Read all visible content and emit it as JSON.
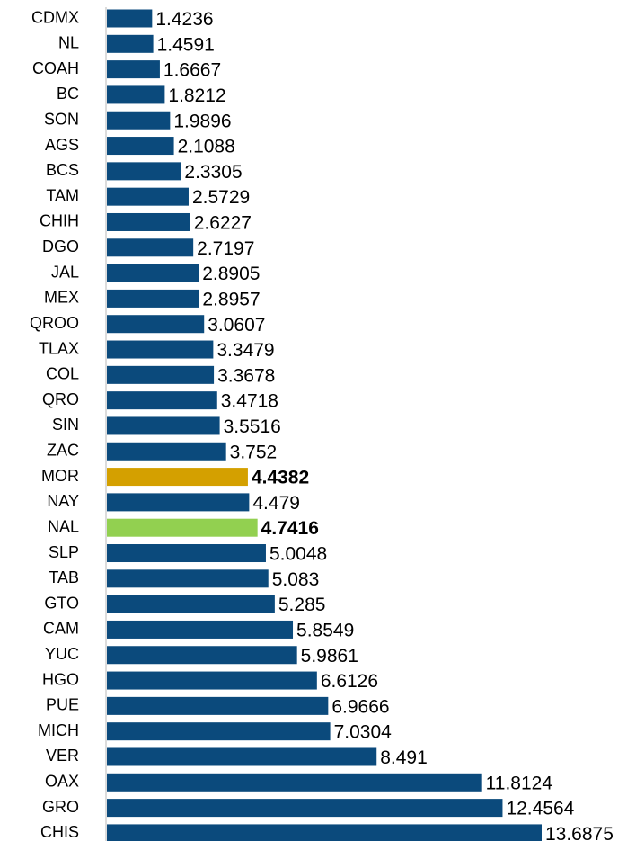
{
  "chart_data": {
    "type": "bar",
    "orientation": "horizontal",
    "categories": [
      "CDMX",
      "NL",
      "COAH",
      "BC",
      "SON",
      "AGS",
      "BCS",
      "TAM",
      "CHIH",
      "DGO",
      "JAL",
      "MEX",
      "QROO",
      "TLAX",
      "COL",
      "QRO",
      "SIN",
      "ZAC",
      "MOR",
      "NAY",
      "NAL",
      "SLP",
      "TAB",
      "GTO",
      "CAM",
      "YUC",
      "HGO",
      "PUE",
      "MICH",
      "VER",
      "OAX",
      "GRO",
      "CHIS"
    ],
    "values": [
      1.4236,
      1.4591,
      1.6667,
      1.8212,
      1.9896,
      2.1088,
      2.3305,
      2.5729,
      2.6227,
      2.7197,
      2.8905,
      2.8957,
      3.0607,
      3.3479,
      3.3678,
      3.4718,
      3.5516,
      3.752,
      4.4382,
      4.479,
      4.7416,
      5.0048,
      5.083,
      5.285,
      5.8549,
      5.9861,
      6.6126,
      6.9666,
      7.0304,
      8.491,
      11.8124,
      12.4564,
      13.6875
    ],
    "colors": [
      "#0b4a7c",
      "#0b4a7c",
      "#0b4a7c",
      "#0b4a7c",
      "#0b4a7c",
      "#0b4a7c",
      "#0b4a7c",
      "#0b4a7c",
      "#0b4a7c",
      "#0b4a7c",
      "#0b4a7c",
      "#0b4a7c",
      "#0b4a7c",
      "#0b4a7c",
      "#0b4a7c",
      "#0b4a7c",
      "#0b4a7c",
      "#0b4a7c",
      "#d4a000",
      "#0b4a7c",
      "#92d050",
      "#0b4a7c",
      "#0b4a7c",
      "#0b4a7c",
      "#0b4a7c",
      "#0b4a7c",
      "#0b4a7c",
      "#0b4a7c",
      "#0b4a7c",
      "#0b4a7c",
      "#0b4a7c",
      "#0b4a7c",
      "#0b4a7c"
    ],
    "bold": [
      false,
      false,
      false,
      false,
      false,
      false,
      false,
      false,
      false,
      false,
      false,
      false,
      false,
      false,
      false,
      false,
      false,
      false,
      true,
      false,
      true,
      false,
      false,
      false,
      false,
      false,
      false,
      false,
      false,
      false,
      false,
      false,
      false
    ],
    "xlim": [
      0,
      14
    ]
  }
}
